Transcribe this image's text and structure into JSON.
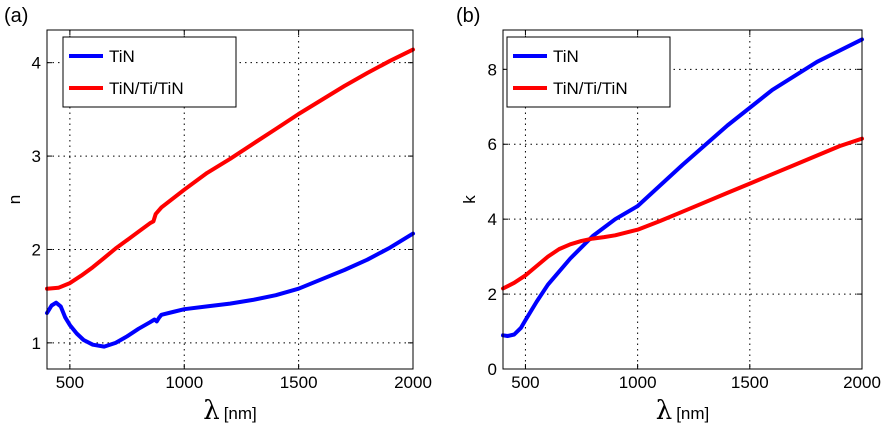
{
  "chart_data": [
    {
      "type": "line",
      "panel_label": "(a)",
      "xlabel_symbol": "λ",
      "xlabel_unit": "[nm]",
      "ylabel": "n",
      "xlim": [
        400,
        2000
      ],
      "ylim": [
        0.72,
        4.35
      ],
      "xticks": [
        500,
        1000,
        1500,
        2000
      ],
      "yticks": [
        1,
        2,
        3,
        4
      ],
      "grid": true,
      "legend_position": "top-left",
      "series": [
        {
          "name": "TiN",
          "color": "#0000ff",
          "x": [
            400,
            420,
            440,
            460,
            480,
            500,
            530,
            560,
            600,
            650,
            700,
            750,
            800,
            850,
            870,
            880,
            890,
            900,
            950,
            1000,
            1100,
            1200,
            1300,
            1400,
            1500,
            1600,
            1700,
            1800,
            1900,
            2000
          ],
          "y": [
            1.32,
            1.4,
            1.43,
            1.39,
            1.27,
            1.19,
            1.1,
            1.03,
            0.98,
            0.96,
            1.0,
            1.07,
            1.15,
            1.22,
            1.25,
            1.23,
            1.27,
            1.3,
            1.33,
            1.36,
            1.39,
            1.42,
            1.46,
            1.51,
            1.58,
            1.68,
            1.78,
            1.89,
            2.02,
            2.17
          ]
        },
        {
          "name": "TiN/Ti/TiN",
          "color": "#ff0000",
          "x": [
            400,
            450,
            500,
            550,
            600,
            650,
            700,
            750,
            800,
            850,
            865,
            875,
            900,
            1000,
            1100,
            1200,
            1300,
            1400,
            1500,
            1600,
            1700,
            1800,
            1900,
            2000
          ],
          "y": [
            1.58,
            1.59,
            1.64,
            1.72,
            1.81,
            1.91,
            2.01,
            2.1,
            2.19,
            2.28,
            2.3,
            2.38,
            2.45,
            2.64,
            2.82,
            2.97,
            3.13,
            3.29,
            3.45,
            3.6,
            3.75,
            3.89,
            4.02,
            4.14
          ]
        }
      ]
    },
    {
      "type": "line",
      "panel_label": "(b)",
      "xlabel_symbol": "λ",
      "xlabel_unit": "[nm]",
      "ylabel": "k",
      "xlim": [
        400,
        2000
      ],
      "ylim": [
        0,
        9.05
      ],
      "xticks": [
        500,
        1000,
        1500,
        2000
      ],
      "yticks": [
        0,
        2,
        4,
        6,
        8
      ],
      "grid": true,
      "legend_position": "top-left",
      "series": [
        {
          "name": "TiN",
          "color": "#0000ff",
          "x": [
            400,
            420,
            450,
            480,
            500,
            550,
            600,
            700,
            800,
            900,
            1000,
            1200,
            1400,
            1600,
            1800,
            2000
          ],
          "y": [
            0.9,
            0.88,
            0.92,
            1.1,
            1.3,
            1.8,
            2.25,
            2.95,
            3.55,
            4.0,
            4.35,
            5.45,
            6.5,
            7.45,
            8.2,
            8.8
          ]
        },
        {
          "name": "TiN/Ti/TiN",
          "color": "#ff0000",
          "x": [
            400,
            450,
            500,
            550,
            600,
            650,
            700,
            750,
            800,
            850,
            900,
            1000,
            1100,
            1200,
            1300,
            1400,
            1500,
            1600,
            1700,
            1800,
            1900,
            2000
          ],
          "y": [
            2.15,
            2.3,
            2.5,
            2.75,
            3.0,
            3.2,
            3.33,
            3.42,
            3.48,
            3.52,
            3.57,
            3.72,
            3.95,
            4.2,
            4.45,
            4.7,
            4.95,
            5.2,
            5.45,
            5.7,
            5.95,
            6.15
          ]
        }
      ]
    }
  ]
}
